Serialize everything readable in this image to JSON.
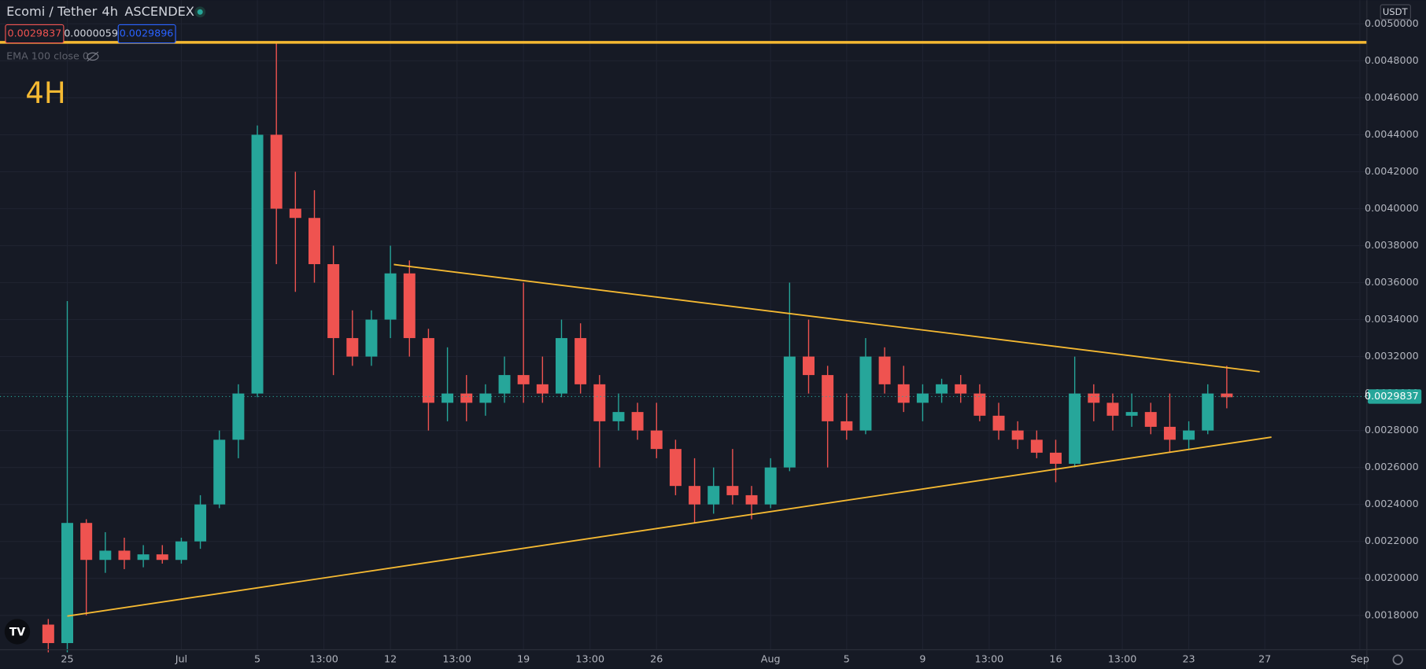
{
  "chart_data": {
    "type": "candlestick",
    "title": "Ecomi / Tether",
    "interval": "4h",
    "exchange": "ASCENDEX",
    "legend_values": [
      "0.0029837",
      "0.0000059",
      "0.0029896"
    ],
    "indicator": "EMA 100 close 0",
    "annotation": "4H",
    "currency": "USDT",
    "up_color": "#26a69a",
    "down_color": "#ef5350",
    "line_color": "#f5b932",
    "grid": true,
    "categories": [
      null,
      null,
      null,
      null,
      null,
      null,
      null,
      null,
      null,
      null,
      null,
      null,
      null,
      null,
      null,
      null,
      null,
      null,
      null,
      null,
      null,
      null,
      null,
      null,
      null,
      null,
      null,
      null,
      null,
      null,
      null,
      null,
      null,
      null,
      null,
      null,
      null,
      null,
      null,
      null,
      null,
      null,
      null,
      null,
      null,
      null,
      null,
      null,
      null,
      null,
      null,
      null,
      null,
      null,
      null,
      null,
      null,
      null,
      null,
      null,
      null,
      null,
      null
    ],
    "open": [
      0.00175,
      0.00165,
      0.0023,
      0.0021,
      0.00215,
      0.0021,
      0.00213,
      0.0021,
      0.0022,
      0.0024,
      0.00275,
      0.003,
      0.0044,
      0.004,
      0.00395,
      0.0037,
      0.0033,
      0.0032,
      0.0034,
      0.00365,
      0.0033,
      0.00295,
      0.003,
      0.00295,
      0.003,
      0.0031,
      0.00305,
      0.003,
      0.0033,
      0.00305,
      0.00285,
      0.0029,
      0.0028,
      0.0027,
      0.0025,
      0.0024,
      0.0025,
      0.00245,
      0.0024,
      0.0026,
      0.0032,
      0.0031,
      0.00285,
      0.0028,
      0.0032,
      0.00305,
      0.00295,
      0.003,
      0.00305,
      0.003,
      0.00288,
      0.0028,
      0.00275,
      0.00268,
      0.00262,
      0.003,
      0.00295,
      0.00288,
      0.0029,
      0.00282,
      0.00275,
      0.0028,
      0.003
    ],
    "high": [
      0.00178,
      0.0035,
      0.00232,
      0.00225,
      0.00222,
      0.00218,
      0.00218,
      0.00222,
      0.00245,
      0.0028,
      0.00305,
      0.00445,
      0.0049,
      0.0042,
      0.0041,
      0.0038,
      0.00345,
      0.00345,
      0.0038,
      0.00372,
      0.00335,
      0.00325,
      0.0031,
      0.00305,
      0.0032,
      0.0036,
      0.0032,
      0.0034,
      0.00338,
      0.0031,
      0.003,
      0.00295,
      0.00295,
      0.00275,
      0.00265,
      0.0026,
      0.0027,
      0.0025,
      0.00265,
      0.0036,
      0.0034,
      0.00315,
      0.003,
      0.0033,
      0.00325,
      0.00315,
      0.00305,
      0.00308,
      0.0031,
      0.00305,
      0.00295,
      0.00285,
      0.0028,
      0.00275,
      0.0032,
      0.00305,
      0.003,
      0.003,
      0.00295,
      0.003,
      0.00285,
      0.00305,
      0.00315
    ],
    "low": [
      0.0016,
      0.0016,
      0.0018,
      0.00203,
      0.00205,
      0.00206,
      0.00208,
      0.00208,
      0.00216,
      0.00238,
      0.00265,
      0.00298,
      0.0037,
      0.00355,
      0.0036,
      0.0031,
      0.00315,
      0.00315,
      0.0033,
      0.0032,
      0.0028,
      0.00285,
      0.00285,
      0.00288,
      0.00295,
      0.00295,
      0.00295,
      0.00298,
      0.003,
      0.0026,
      0.0028,
      0.00275,
      0.00265,
      0.00245,
      0.0023,
      0.00235,
      0.0024,
      0.00232,
      0.00238,
      0.00258,
      0.003,
      0.0026,
      0.00275,
      0.00278,
      0.003,
      0.0029,
      0.00285,
      0.00295,
      0.00295,
      0.00285,
      0.00275,
      0.0027,
      0.00265,
      0.00252,
      0.0026,
      0.00285,
      0.0028,
      0.00282,
      0.00278,
      0.00268,
      0.0027,
      0.00278,
      0.00292
    ],
    "close": [
      0.00165,
      0.0023,
      0.0021,
      0.00215,
      0.0021,
      0.00213,
      0.0021,
      0.0022,
      0.0024,
      0.00275,
      0.003,
      0.0044,
      0.004,
      0.00395,
      0.0037,
      0.0033,
      0.0032,
      0.0034,
      0.00365,
      0.0033,
      0.00295,
      0.003,
      0.00295,
      0.003,
      0.0031,
      0.00305,
      0.003,
      0.0033,
      0.00305,
      0.00285,
      0.0029,
      0.0028,
      0.0027,
      0.0025,
      0.0024,
      0.0025,
      0.00245,
      0.0024,
      0.0026,
      0.0032,
      0.0031,
      0.00285,
      0.0028,
      0.0032,
      0.00305,
      0.00295,
      0.003,
      0.00305,
      0.003,
      0.00288,
      0.0028,
      0.00275,
      0.00268,
      0.00262,
      0.003,
      0.00295,
      0.00288,
      0.0029,
      0.00282,
      0.00275,
      0.0028,
      0.003,
      0.00298
    ],
    "ylim": [
      0.001614,
      0.005128
    ],
    "yticks": [
      {
        "value": 0.0018,
        "label": "0.0018000"
      },
      {
        "value": 0.002,
        "label": "0.0020000"
      },
      {
        "value": 0.0022,
        "label": "0.0022000"
      },
      {
        "value": 0.0024,
        "label": "0.0024000"
      },
      {
        "value": 0.0026,
        "label": "0.0026000"
      },
      {
        "value": 0.0028,
        "label": "0.0028000"
      },
      {
        "value": 0.003,
        "label": "0.0030000"
      },
      {
        "value": 0.0032,
        "label": "0.0032000"
      },
      {
        "value": 0.0034,
        "label": "0.0034000"
      },
      {
        "value": 0.0036,
        "label": "0.0036000"
      },
      {
        "value": 0.0038,
        "label": "0.0038000"
      },
      {
        "value": 0.004,
        "label": "0.0040000"
      },
      {
        "value": 0.0042,
        "label": "0.0042000"
      },
      {
        "value": 0.0044,
        "label": "0.0044000"
      },
      {
        "value": 0.0046,
        "label": "0.0046000"
      },
      {
        "value": 0.0048,
        "label": "0.0048000"
      },
      {
        "value": 0.005,
        "label": "0.0050000"
      }
    ],
    "xlim": [
      -2.54,
      69.37
    ],
    "xticks": [
      {
        "value": 1,
        "label": "25"
      },
      {
        "value": 7,
        "label": "Jul"
      },
      {
        "value": 11,
        "label": "5"
      },
      {
        "value": 14.5,
        "label": "13:00"
      },
      {
        "value": 18,
        "label": "12"
      },
      {
        "value": 21.5,
        "label": "13:00"
      },
      {
        "value": 25,
        "label": "19"
      },
      {
        "value": 28.5,
        "label": "13:00"
      },
      {
        "value": 32,
        "label": "26"
      },
      {
        "value": 38,
        "label": "Aug"
      },
      {
        "value": 42,
        "label": "5"
      },
      {
        "value": 46,
        "label": "9"
      },
      {
        "value": 49.5,
        "label": "13:00"
      },
      {
        "value": 53,
        "label": "16"
      },
      {
        "value": 56.5,
        "label": "13:00"
      },
      {
        "value": 60,
        "label": "23"
      },
      {
        "value": 64,
        "label": "27"
      },
      {
        "value": 69,
        "label": "Sep"
      }
    ],
    "last_price": {
      "value": 0.0029837,
      "label": "0.0029837"
    },
    "hline": 0.0049,
    "trendlines": [
      {
        "x": [
          18.18,
          63.73
        ],
        "y": [
          0.003698,
          0.003118
        ]
      },
      {
        "x": [
          1,
          64.35
        ],
        "y": [
          0.001796,
          0.002764
        ]
      }
    ]
  }
}
